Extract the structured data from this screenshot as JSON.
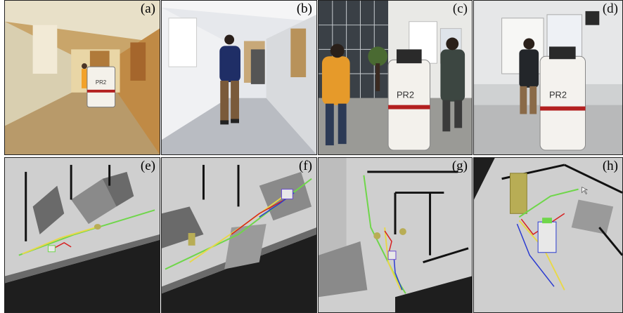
{
  "panels": [
    {
      "label": "(a)"
    },
    {
      "label": "(b)"
    },
    {
      "label": "(c)"
    },
    {
      "label": "(d)"
    },
    {
      "label": "(e)"
    },
    {
      "label": "(f)"
    },
    {
      "label": "(g)"
    },
    {
      "label": "(h)"
    }
  ],
  "robot_logo": "PR2",
  "colors": {
    "trajectory_green": "#6fd64a",
    "trajectory_yellow": "#e8d84a",
    "trajectory_red": "#d62020",
    "trajectory_blue": "#2a3ad0",
    "obstacle_olive": "#b8ad55",
    "map_free": "#d0d0d0",
    "map_unknown": "#1e1e1e",
    "map_obstacle": "#6a6a6a"
  }
}
